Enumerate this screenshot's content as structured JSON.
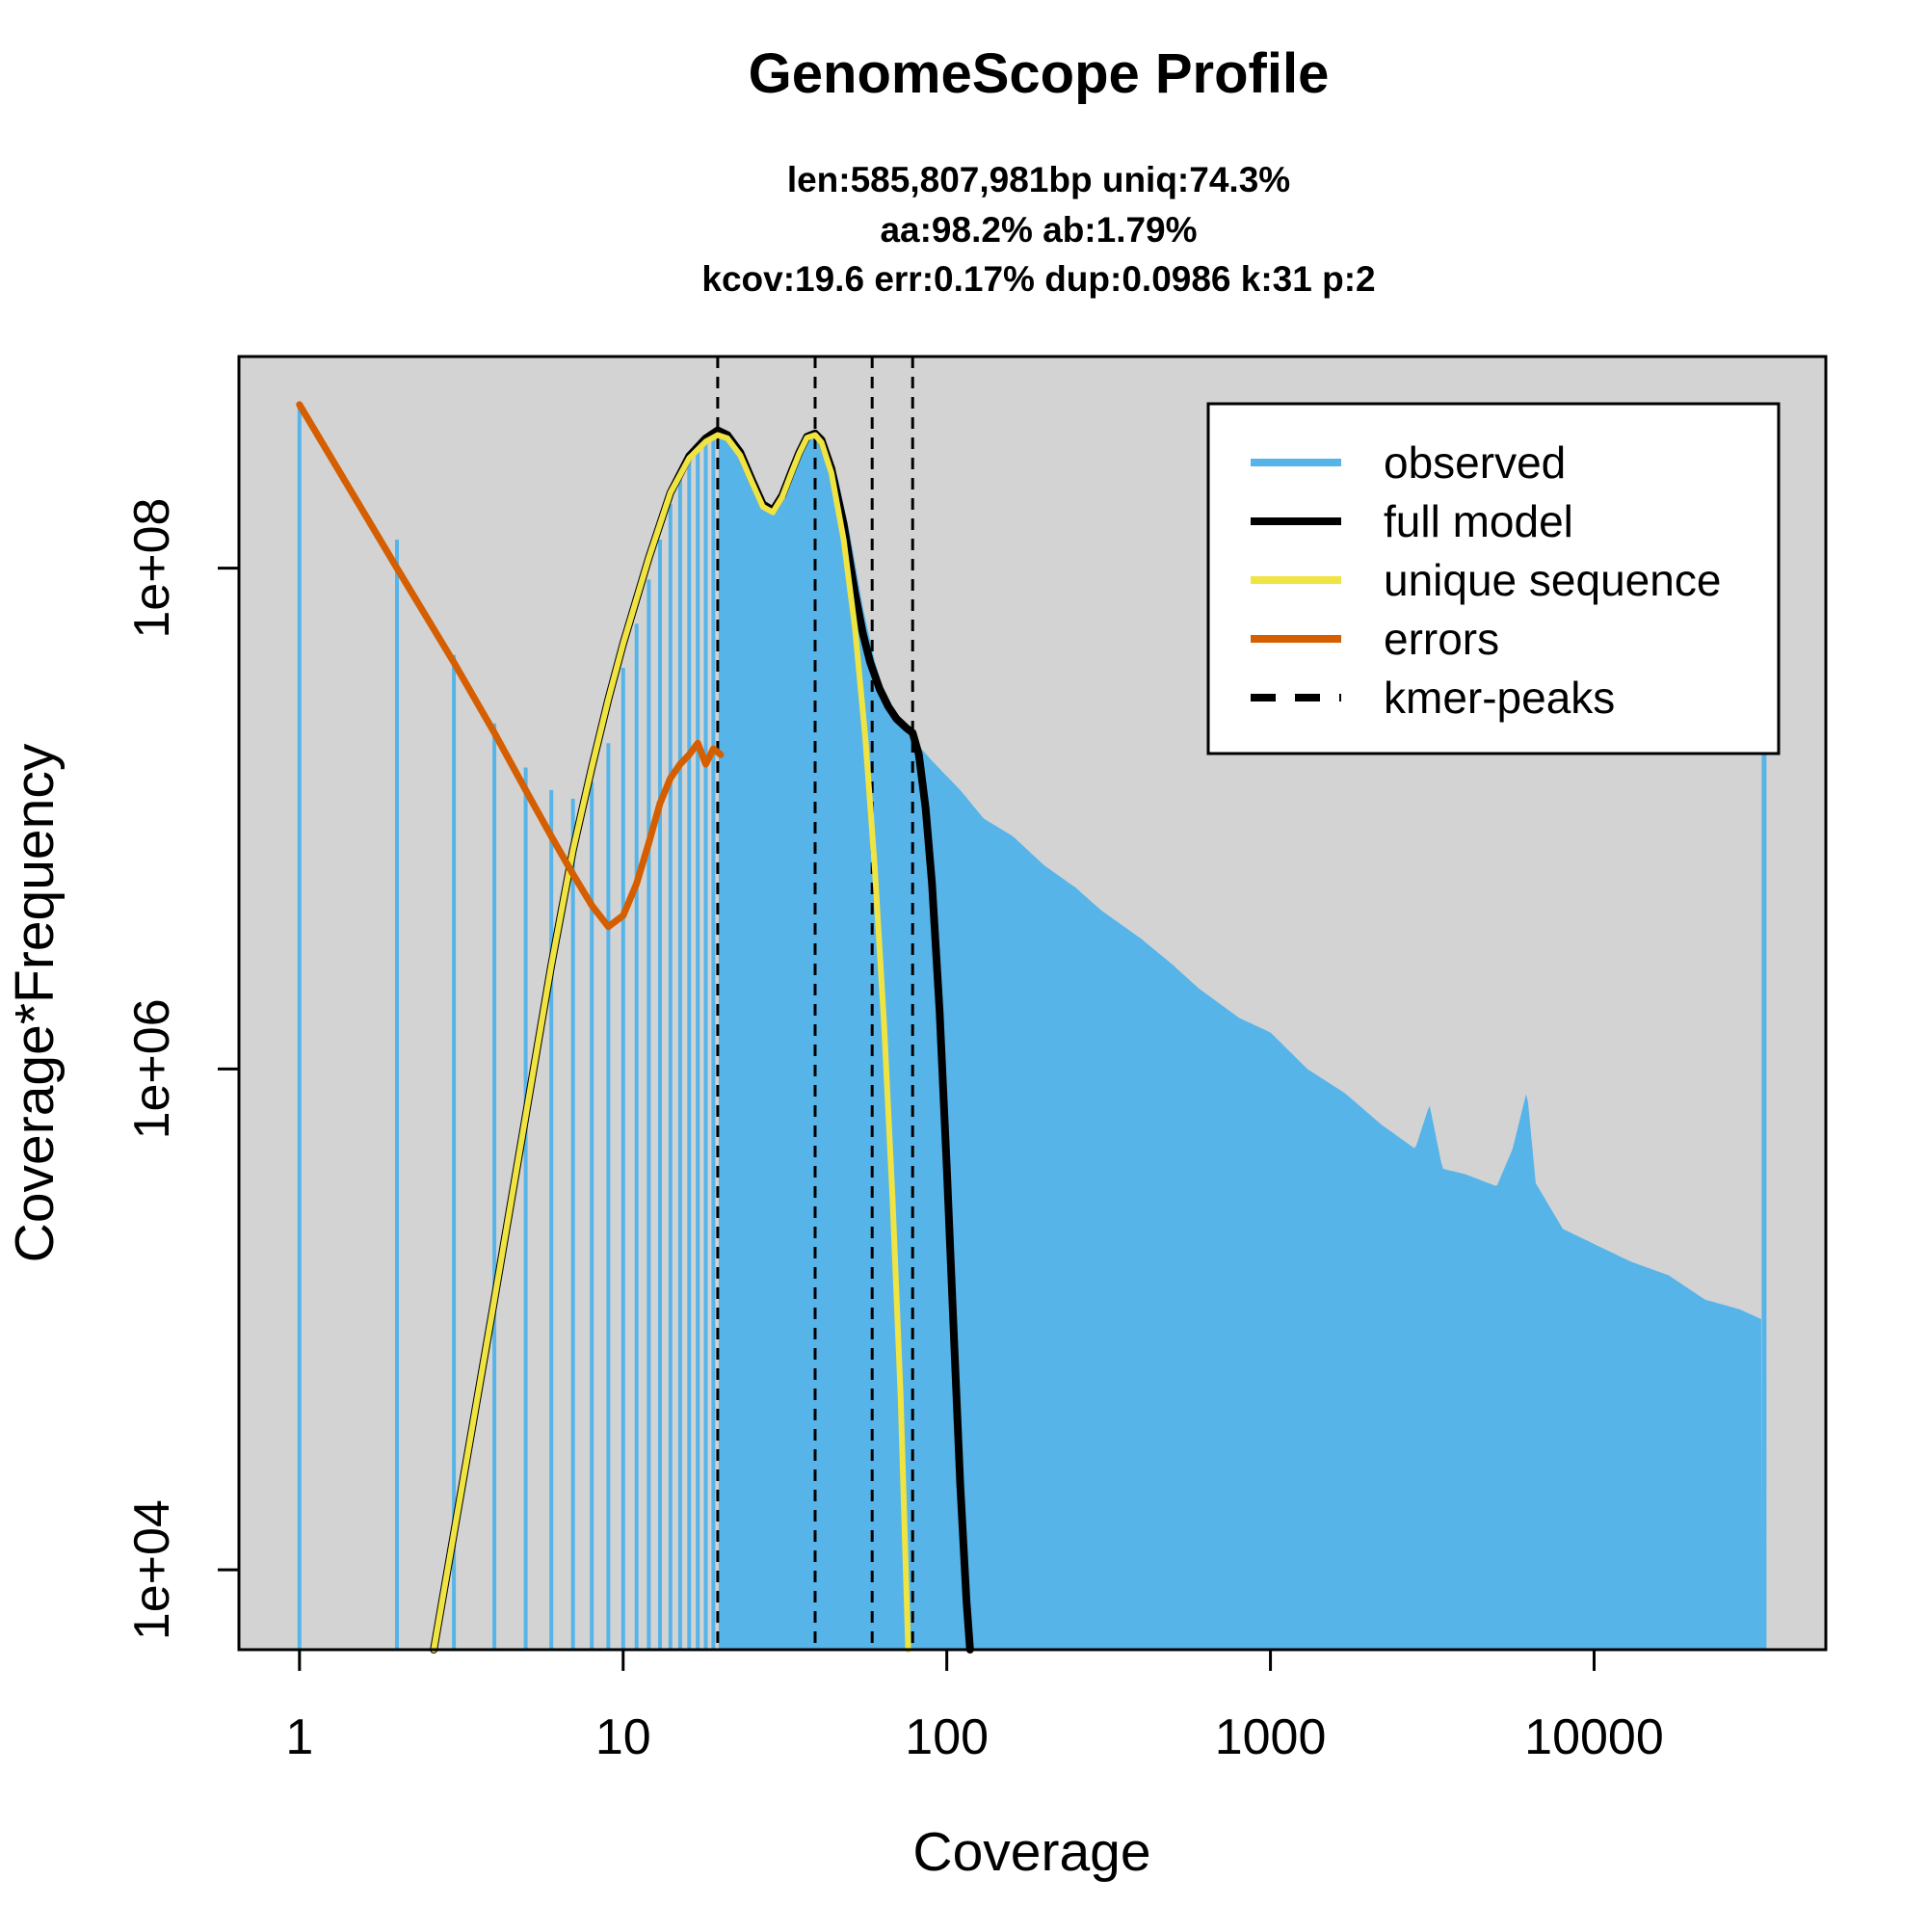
{
  "chart_data": {
    "type": "line",
    "title": "GenomeScope Profile",
    "subtitle_lines": [
      "len:585,807,981bp uniq:74.3%",
      "aa:98.2% ab:1.79%",
      "kcov:19.6 err:0.17%  dup:0.0986  k:31 p:2"
    ],
    "xlabel": "Coverage",
    "ylabel": "Coverage*Frequency",
    "x_scale": "log",
    "y_scale": "log",
    "xlim": [
      0.65,
      52000
    ],
    "ylim": [
      4800,
      700000000
    ],
    "x_ticks": [
      1,
      10,
      100,
      1000,
      10000
    ],
    "x_tick_labels": [
      "1",
      "10",
      "100",
      "1000",
      "10000"
    ],
    "y_ticks": [
      10000,
      1000000,
      100000000
    ],
    "y_tick_labels": [
      "1e+04",
      "1e+06",
      "1e+08"
    ],
    "background_color": "#d3d3d3",
    "colors": {
      "observed": "#56b4e9",
      "full_model": "#000000",
      "unique_sequence": "#f0e442",
      "errors": "#d55e00",
      "kmer_peaks": "#000000"
    },
    "legend": {
      "position": "top-right",
      "entries": [
        "observed",
        "full model",
        "unique sequence",
        "errors",
        "kmer-peaks"
      ]
    },
    "kmer_peaks": [
      19.6,
      39.2,
      58.8,
      78.4
    ],
    "observed_profile": [
      [
        1,
        450000000
      ],
      [
        2,
        130000000
      ],
      [
        3,
        45000000
      ],
      [
        4,
        24000000
      ],
      [
        5,
        16000000
      ],
      [
        6,
        13000000
      ],
      [
        7,
        12000000
      ],
      [
        8,
        14000000
      ],
      [
        9,
        20000000
      ],
      [
        10,
        40000000
      ],
      [
        11,
        60000000
      ],
      [
        12,
        90000000
      ],
      [
        13,
        130000000
      ],
      [
        14,
        180000000
      ],
      [
        15,
        230000000
      ],
      [
        16,
        270000000
      ],
      [
        17,
        310000000
      ],
      [
        18,
        340000000
      ],
      [
        19,
        355000000
      ],
      [
        20,
        350000000
      ],
      [
        22,
        310000000
      ],
      [
        24,
        250000000
      ],
      [
        26,
        200000000
      ],
      [
        28,
        175000000
      ],
      [
        30,
        180000000
      ],
      [
        33,
        220000000
      ],
      [
        36,
        290000000
      ],
      [
        39,
        360000000
      ],
      [
        42,
        330000000
      ],
      [
        46,
        230000000
      ],
      [
        50,
        140000000
      ],
      [
        55,
        70000000
      ],
      [
        60,
        42000000
      ],
      [
        65,
        30000000
      ],
      [
        70,
        24000000
      ],
      [
        78,
        21000000
      ],
      [
        90,
        17000000
      ],
      [
        110,
        13000000
      ],
      [
        130,
        10000000
      ],
      [
        160,
        8500000
      ],
      [
        200,
        6500000
      ],
      [
        250,
        5300000
      ],
      [
        300,
        4300000
      ],
      [
        400,
        3300000
      ],
      [
        500,
        2600000
      ],
      [
        600,
        2100000
      ],
      [
        800,
        1600000
      ],
      [
        1000,
        1400000
      ],
      [
        1300,
        1000000
      ],
      [
        1700,
        800000
      ],
      [
        2200,
        600000
      ],
      [
        2800,
        480000
      ],
      [
        3100,
        720000
      ],
      [
        3400,
        400000
      ],
      [
        4000,
        380000
      ],
      [
        5000,
        340000
      ],
      [
        5600,
        480000
      ],
      [
        6200,
        820000
      ],
      [
        6600,
        350000
      ],
      [
        8000,
        230000
      ],
      [
        10000,
        200000
      ],
      [
        13000,
        170000
      ],
      [
        17000,
        150000
      ],
      [
        22000,
        120000
      ],
      [
        28000,
        110000
      ],
      [
        33000,
        100000
      ],
      [
        33500,
        50000000
      ]
    ],
    "series": [
      {
        "name": "full model",
        "x": [
          2.6,
          3,
          4,
          5,
          6,
          7,
          8,
          9,
          10,
          12,
          14,
          16,
          18,
          19.6,
          21,
          23,
          25,
          27,
          29,
          31,
          33,
          35,
          37,
          39.2,
          41,
          44,
          48,
          52,
          55,
          58,
          62,
          66,
          70,
          75,
          78.4,
          82,
          86,
          90,
          95,
          100,
          105,
          110,
          115,
          118
        ],
        "values": [
          4800,
          14000,
          120000,
          650000,
          2600000,
          7500000,
          16000000,
          30000000,
          50000000,
          110000000,
          200000000,
          280000000,
          330000000,
          355000000,
          340000000,
          290000000,
          225000000,
          180000000,
          170000000,
          195000000,
          240000000,
          290000000,
          335000000,
          345000000,
          325000000,
          250000000,
          150000000,
          80000000,
          55000000,
          42000000,
          33000000,
          28000000,
          25000000,
          23000000,
          22000000,
          18000000,
          11000000,
          5500000,
          1700000,
          400000,
          90000,
          22000,
          7500,
          4800
        ]
      },
      {
        "name": "unique sequence",
        "x": [
          2.6,
          3,
          4,
          5,
          6,
          7,
          8,
          9,
          10,
          12,
          14,
          16,
          18,
          19.6,
          21,
          23,
          25,
          27,
          29,
          31,
          33,
          35,
          37,
          39.2,
          41,
          44,
          48,
          52,
          56,
          60,
          64,
          68,
          72,
          76
        ],
        "values": [
          4800,
          14000,
          120000,
          650000,
          2600000,
          7500000,
          16000000,
          30000000,
          50000000,
          110000000,
          200000000,
          275000000,
          320000000,
          340000000,
          330000000,
          282000000,
          220000000,
          176000000,
          167000000,
          192000000,
          237000000,
          287000000,
          332000000,
          340000000,
          318000000,
          240000000,
          130000000,
          58000000,
          21000000,
          6200000,
          1500000,
          300000,
          50000,
          4800
        ]
      },
      {
        "name": "errors",
        "x": [
          1,
          2,
          3,
          4,
          5,
          6,
          7,
          8,
          9,
          10,
          11,
          12,
          13,
          14,
          15,
          16,
          17,
          18,
          19,
          20
        ],
        "values": [
          450000000,
          100000000,
          42000000,
          22000000,
          13000000,
          8500000,
          6000000,
          4500000,
          3700000,
          4100000,
          5500000,
          8000000,
          11500000,
          14500000,
          16500000,
          18000000,
          20000000,
          16500000,
          19000000,
          18000000
        ]
      }
    ]
  }
}
